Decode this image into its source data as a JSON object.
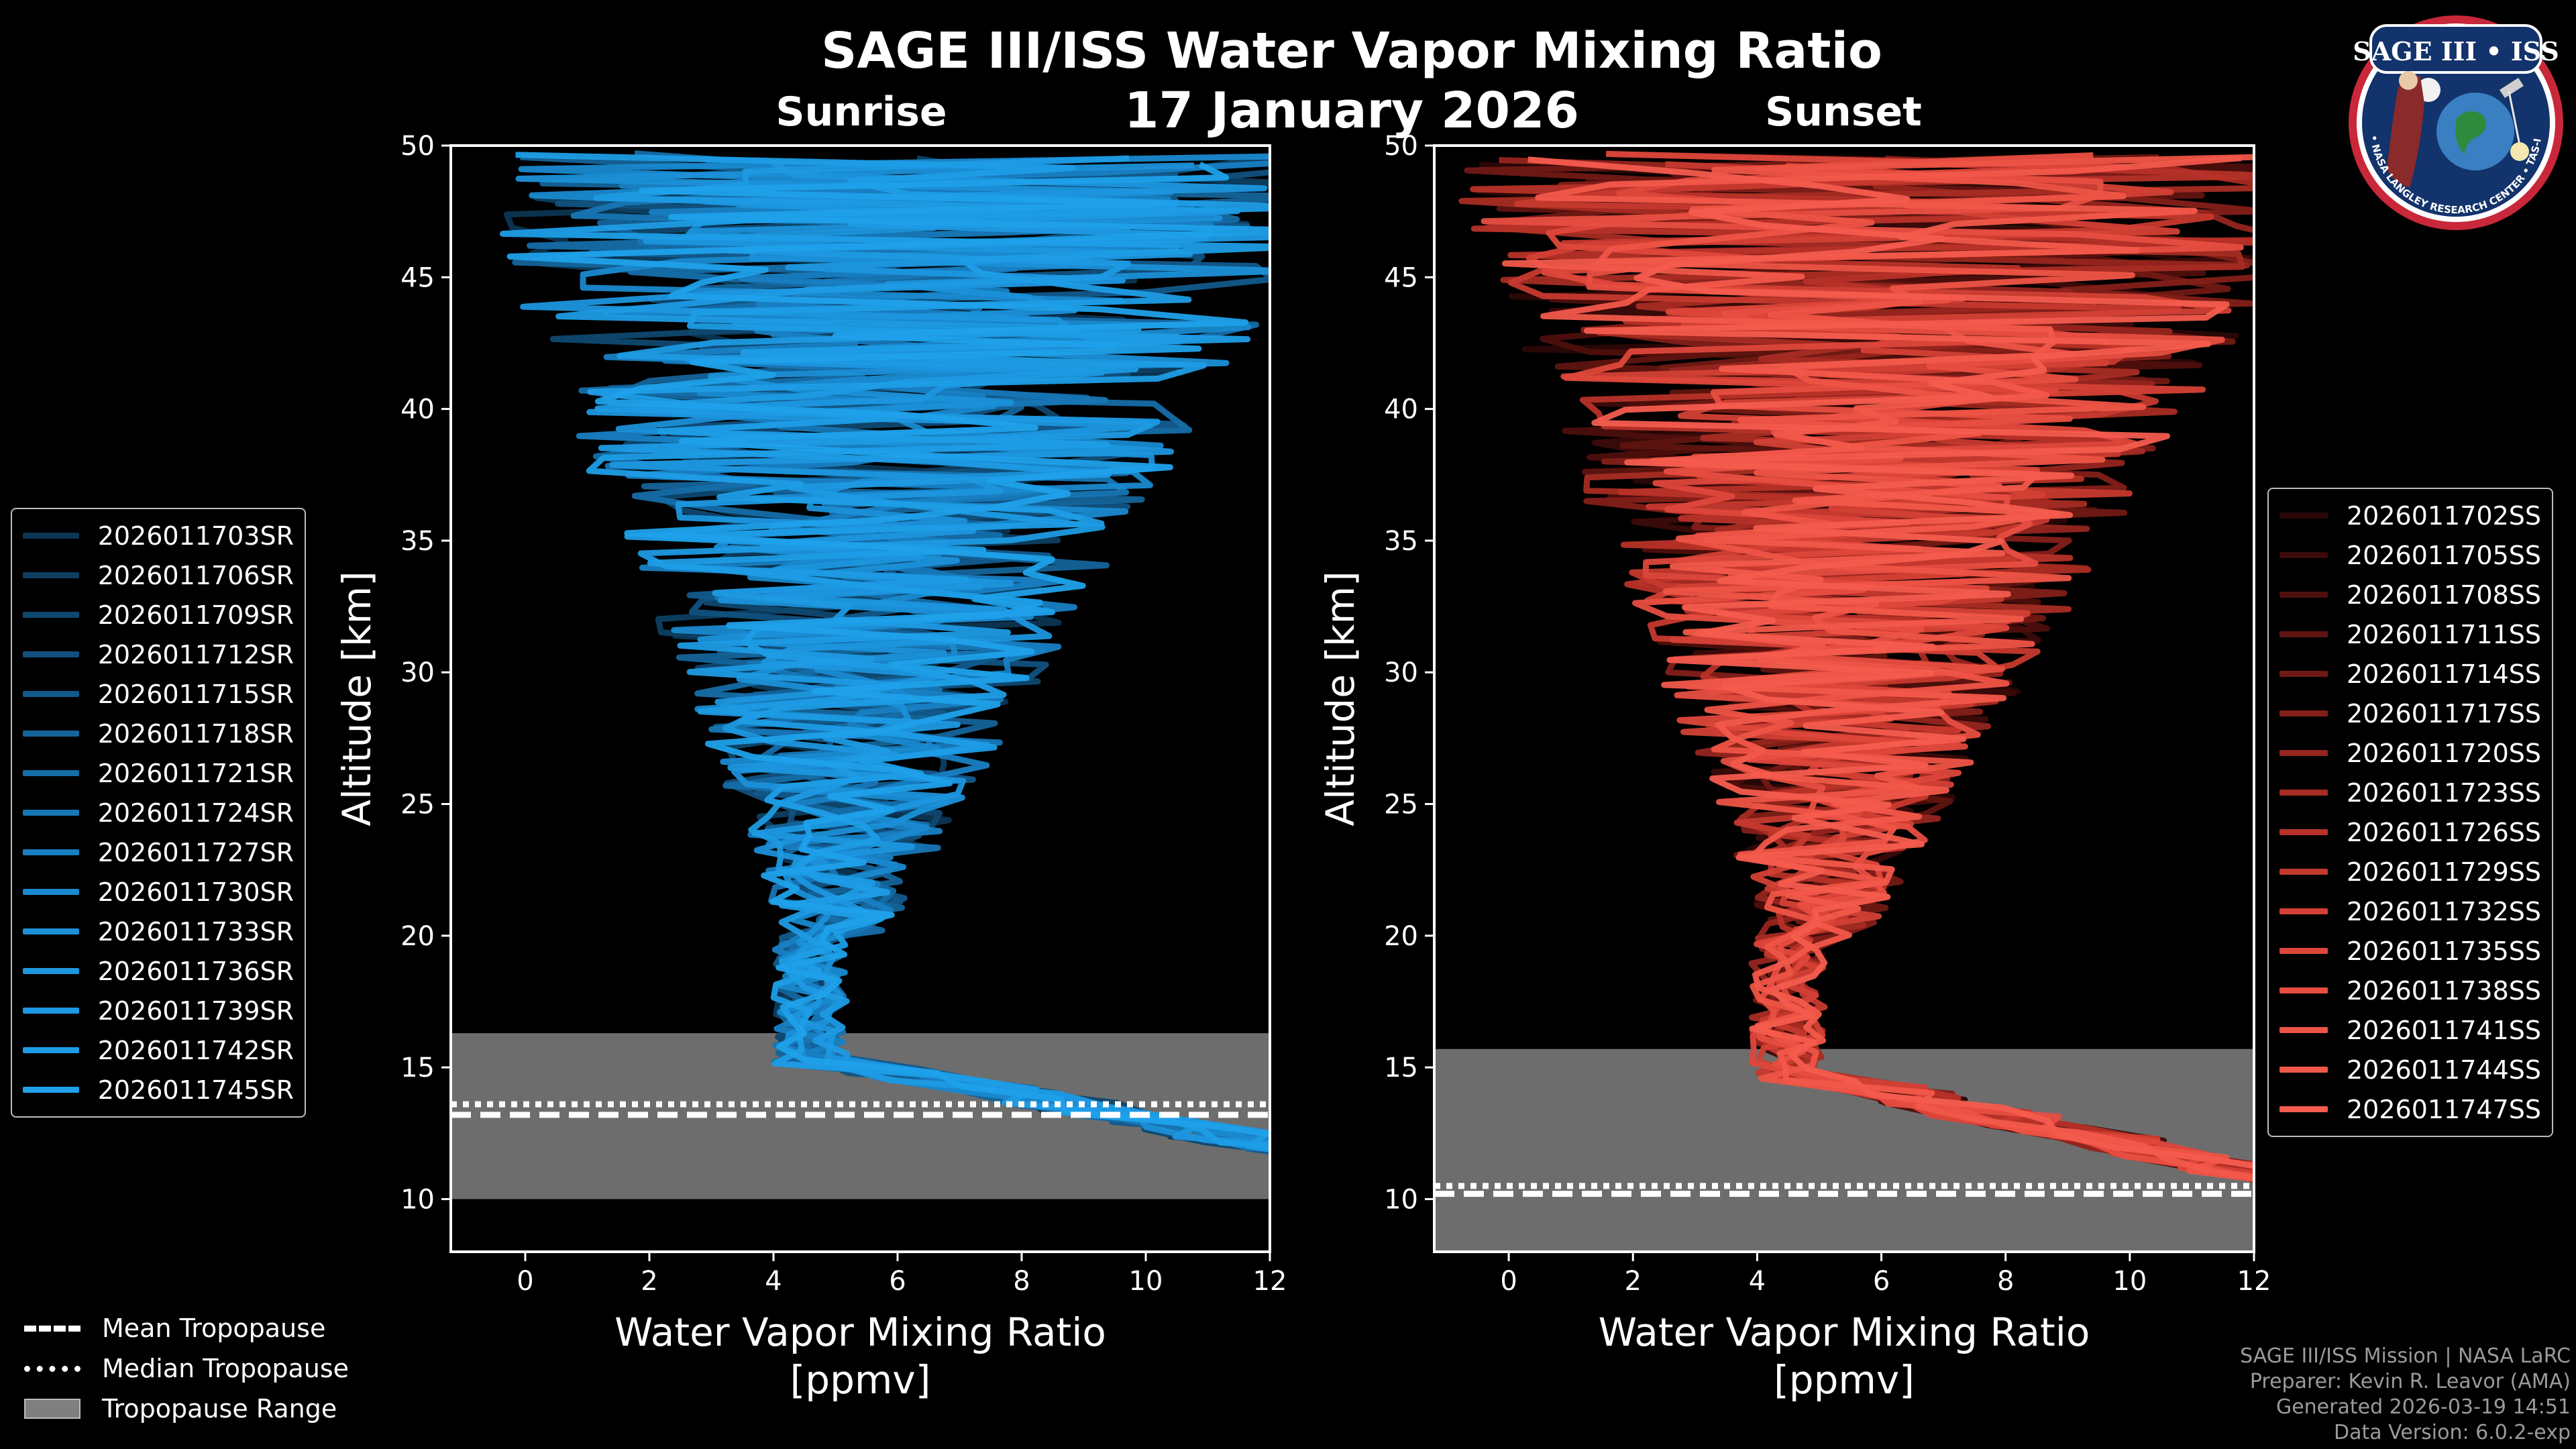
{
  "title": "SAGE III/ISS Water Vapor Mixing Ratio",
  "date": "17 January 2026",
  "colors": {
    "sunrise_accent": "#1f9fe6",
    "sunset_accent": "#f05a4a",
    "tropopause_range": "#808080",
    "background": "#000000"
  },
  "chart_data": [
    {
      "type": "line",
      "title": "Sunrise",
      "xlabel": "Water Vapor Mixing Ratio [ppmv]",
      "xlabel_line1": "Water Vapor Mixing Ratio",
      "xlabel_line2": "[ppmv]",
      "ylabel": "Altitude [km]",
      "xlim": [
        -1.2,
        12
      ],
      "ylim": [
        8,
        50
      ],
      "xticks": [
        0,
        2,
        4,
        6,
        8,
        10,
        12
      ],
      "yticks": [
        10,
        15,
        20,
        25,
        30,
        35,
        40,
        45,
        50
      ],
      "tropopause": {
        "mean": 13.2,
        "median": 13.6,
        "range": [
          10.0,
          16.3
        ]
      },
      "series": [
        {
          "name": "2026011703SR",
          "color": "#0b3552"
        },
        {
          "name": "2026011706SR",
          "color": "#0d3e60"
        },
        {
          "name": "2026011709SR",
          "color": "#0f486f"
        },
        {
          "name": "2026011712SR",
          "color": "#11517e"
        },
        {
          "name": "2026011715SR",
          "color": "#125a8c"
        },
        {
          "name": "2026011718SR",
          "color": "#14649a"
        },
        {
          "name": "2026011721SR",
          "color": "#156da8"
        },
        {
          "name": "2026011724SR",
          "color": "#1776b5"
        },
        {
          "name": "2026011727SR",
          "color": "#1880c3"
        },
        {
          "name": "2026011730SR",
          "color": "#1989cf"
        },
        {
          "name": "2026011733SR",
          "color": "#1b90d8"
        },
        {
          "name": "2026011736SR",
          "color": "#1c96de"
        },
        {
          "name": "2026011739SR",
          "color": "#1d9ae3"
        },
        {
          "name": "2026011742SR",
          "color": "#1e9de6"
        },
        {
          "name": "2026011745SR",
          "color": "#1fa1ea"
        }
      ]
    },
    {
      "type": "line",
      "title": "Sunset",
      "xlabel": "Water Vapor Mixing Ratio [ppmv]",
      "xlabel_line1": "Water Vapor Mixing Ratio",
      "xlabel_line2": "[ppmv]",
      "ylabel": "Altitude [km]",
      "xlim": [
        -1.2,
        12
      ],
      "ylim": [
        8,
        50
      ],
      "xticks": [
        0,
        2,
        4,
        6,
        8,
        10,
        12
      ],
      "yticks": [
        10,
        15,
        20,
        25,
        30,
        35,
        40,
        45,
        50
      ],
      "tropopause": {
        "mean": 10.2,
        "median": 10.5,
        "range": [
          7.9,
          15.7
        ]
      },
      "series": [
        {
          "name": "2026011702SS",
          "color": "#2a0706"
        },
        {
          "name": "2026011705SS",
          "color": "#3b0b09"
        },
        {
          "name": "2026011708SS",
          "color": "#4d0f0c"
        },
        {
          "name": "2026011711SS",
          "color": "#5f1410"
        },
        {
          "name": "2026011714SS",
          "color": "#711914"
        },
        {
          "name": "2026011717SS",
          "color": "#831f18"
        },
        {
          "name": "2026011720SS",
          "color": "#95251d"
        },
        {
          "name": "2026011723SS",
          "color": "#a72c23"
        },
        {
          "name": "2026011726SS",
          "color": "#b73228"
        },
        {
          "name": "2026011729SS",
          "color": "#c6392e"
        },
        {
          "name": "2026011732SS",
          "color": "#d34035"
        },
        {
          "name": "2026011735SS",
          "color": "#de473b"
        },
        {
          "name": "2026011738SS",
          "color": "#e74e41"
        },
        {
          "name": "2026011741SS",
          "color": "#ee5446"
        },
        {
          "name": "2026011744SS",
          "color": "#f2584a"
        },
        {
          "name": "2026011747SS",
          "color": "#f45c4e"
        }
      ]
    }
  ],
  "tropo_legend": {
    "mean": "Mean Tropopause",
    "median": "Median Tropopause",
    "range": "Tropopause Range"
  },
  "footer": {
    "line1": "SAGE III/ISS Mission | NASA LaRC",
    "line2": "Preparer: Kevin R. Leavor (AMA)",
    "line3": "Generated 2026-03-19 14:51",
    "line4": "Data Version: 6.0.2-exp"
  },
  "logo": {
    "title": "SAGE III • ISS",
    "ring_text": "BALL • NASA LANGLEY RESEARCH CENTER • TAS-I • ESA"
  }
}
